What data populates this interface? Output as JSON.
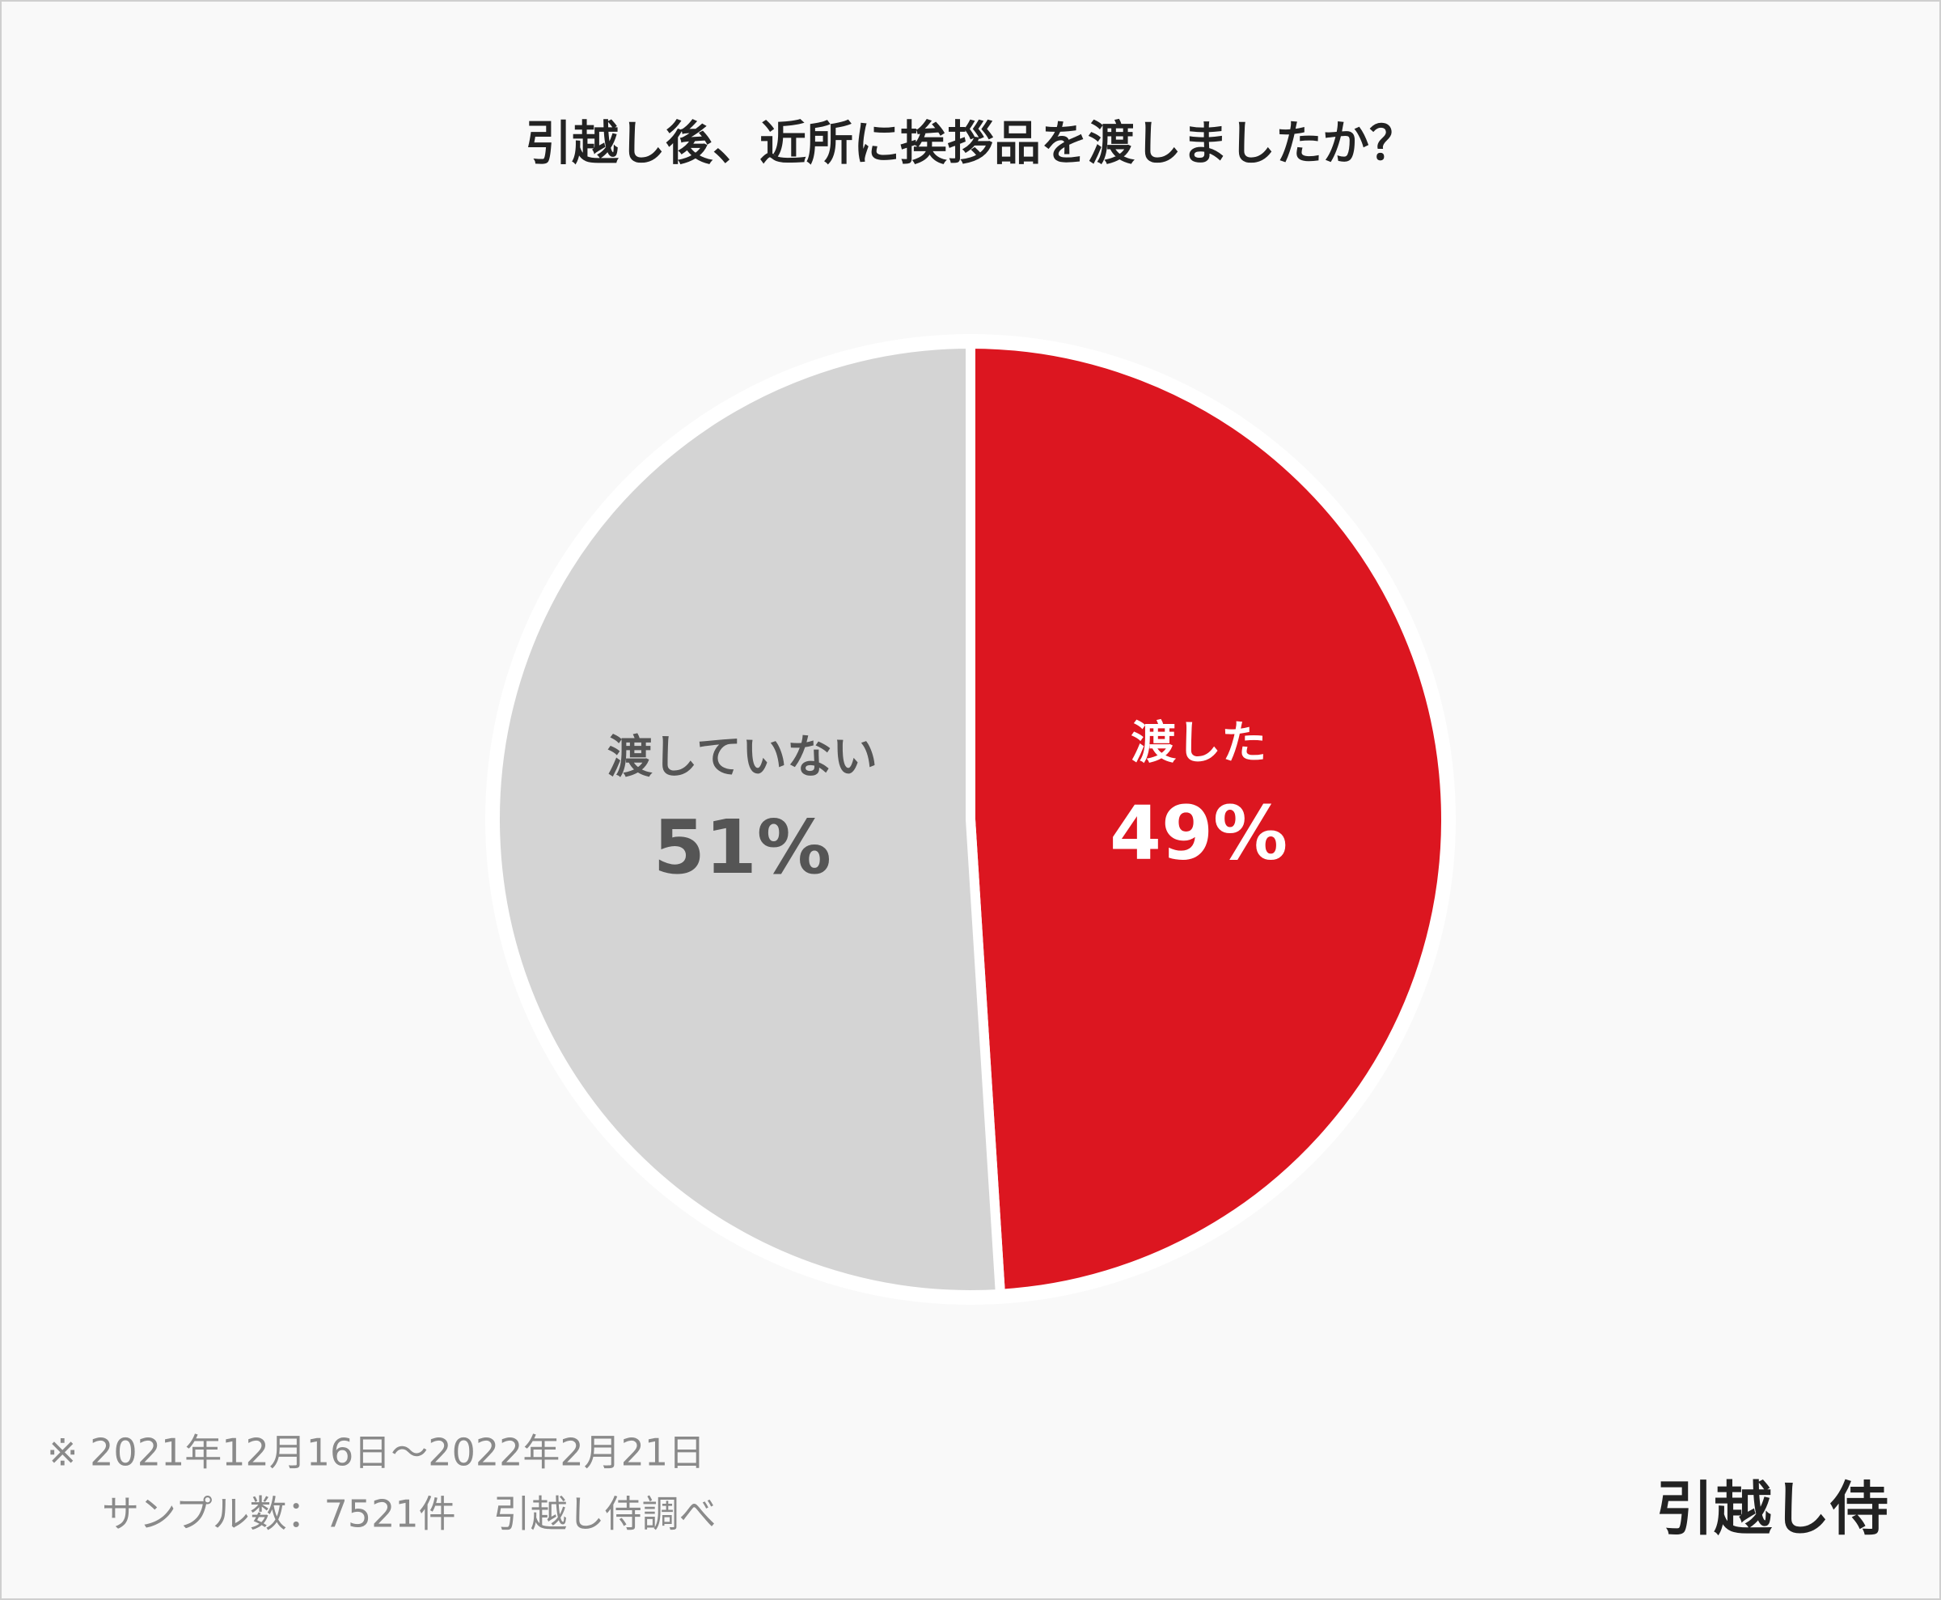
{
  "chart_data": {
    "type": "pie",
    "title": "引越し後、近所に挨拶品を渡しましたか？",
    "categories": [
      "渡した",
      "渡していない"
    ],
    "values": [
      49,
      51
    ],
    "value_labels": [
      "49%",
      "51%"
    ],
    "colors": [
      "#dc1620",
      "#d4d4d4"
    ],
    "notes": [
      "※ 2021年12月16日～2022年2月21日",
      "サンプル数：7521件　引越し侍調べ"
    ],
    "brand": "引越し侍"
  }
}
